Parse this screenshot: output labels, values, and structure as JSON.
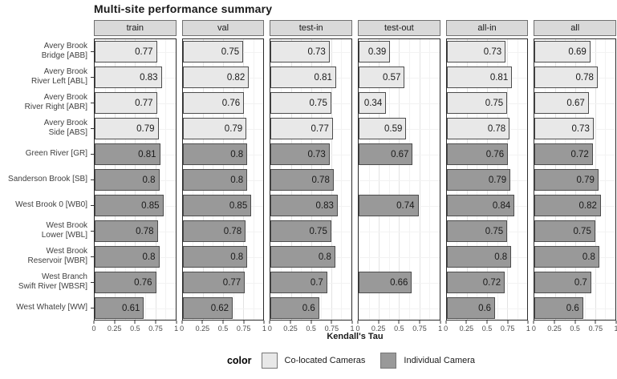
{
  "title": "Multi-site performance summary",
  "axis": {
    "xlabel": "Kendall's Tau"
  },
  "legend": {
    "title": "color",
    "entries": [
      {
        "label": "Co-located Cameras",
        "color": "#e8e8e8"
      },
      {
        "label": "Individual Camera",
        "color": "#999999"
      }
    ]
  },
  "colors": {
    "co_located_fill": "#e8e8e8",
    "individual_fill": "#999999",
    "bar_border": "#4d4d4d",
    "strip_background": "#d9d9d9"
  },
  "sites": [
    {
      "label": "Avery Brook\nBridge [ABB]",
      "group": "co_located"
    },
    {
      "label": "Avery Brook\nRiver Left [ABL]",
      "group": "co_located"
    },
    {
      "label": "Avery Brook\nRiver Right [ABR]",
      "group": "co_located"
    },
    {
      "label": "Avery Brook\nSide [ABS]",
      "group": "co_located"
    },
    {
      "label": "Green River [GR]",
      "group": "individual"
    },
    {
      "label": "Sanderson Brook [SB]",
      "group": "individual"
    },
    {
      "label": "West Brook 0 [WB0]",
      "group": "individual"
    },
    {
      "label": "West Brook\nLower [WBL]",
      "group": "individual"
    },
    {
      "label": "West Brook\nReservoir [WBR]",
      "group": "individual"
    },
    {
      "label": "West Branch\nSwift River [WBSR]",
      "group": "individual"
    },
    {
      "label": "West Whately [WW]",
      "group": "individual"
    }
  ],
  "chart_data": {
    "type": "bar",
    "orientation": "horizontal",
    "title": "Multi-site performance summary",
    "xlabel": "Kendall's Tau",
    "ylabel": "",
    "xlim": [
      0,
      1
    ],
    "x_ticks": [
      0,
      0.25,
      0.5,
      0.75,
      1
    ],
    "grid": true,
    "facets": [
      "train",
      "val",
      "test-in",
      "test-out",
      "all-in",
      "all"
    ],
    "categories": [
      "Avery Brook Bridge [ABB]",
      "Avery Brook River Left [ABL]",
      "Avery Brook River Right [ABR]",
      "Avery Brook Side [ABS]",
      "Green River [GR]",
      "Sanderson Brook [SB]",
      "West Brook 0 [WB0]",
      "West Brook Lower [WBL]",
      "West Brook Reservoir [WBR]",
      "West Branch Swift River [WBSR]",
      "West Whately [WW]"
    ],
    "category_groups": [
      "Co-located Cameras",
      "Co-located Cameras",
      "Co-located Cameras",
      "Co-located Cameras",
      "Individual Camera",
      "Individual Camera",
      "Individual Camera",
      "Individual Camera",
      "Individual Camera",
      "Individual Camera",
      "Individual Camera"
    ],
    "series": [
      {
        "name": "train",
        "values": [
          0.77,
          0.83,
          0.77,
          0.79,
          0.81,
          0.8,
          0.85,
          0.78,
          0.8,
          0.76,
          0.61
        ]
      },
      {
        "name": "val",
        "values": [
          0.75,
          0.82,
          0.76,
          0.79,
          0.8,
          0.8,
          0.85,
          0.78,
          0.8,
          0.77,
          0.62
        ]
      },
      {
        "name": "test-in",
        "values": [
          0.73,
          0.81,
          0.75,
          0.77,
          0.73,
          0.78,
          0.83,
          0.75,
          0.8,
          0.7,
          0.6
        ]
      },
      {
        "name": "test-out",
        "values": [
          0.39,
          0.57,
          0.34,
          0.59,
          0.67,
          null,
          0.74,
          null,
          null,
          0.66,
          null
        ]
      },
      {
        "name": "all-in",
        "values": [
          0.73,
          0.81,
          0.75,
          0.78,
          0.76,
          0.79,
          0.84,
          0.75,
          0.8,
          0.72,
          0.6
        ]
      },
      {
        "name": "all",
        "values": [
          0.69,
          0.78,
          0.67,
          0.73,
          0.72,
          0.79,
          0.82,
          0.75,
          0.8,
          0.7,
          0.6
        ]
      }
    ],
    "legend": {
      "title": "color",
      "position": "bottom",
      "entries": [
        "Co-located Cameras",
        "Individual Camera"
      ]
    }
  }
}
